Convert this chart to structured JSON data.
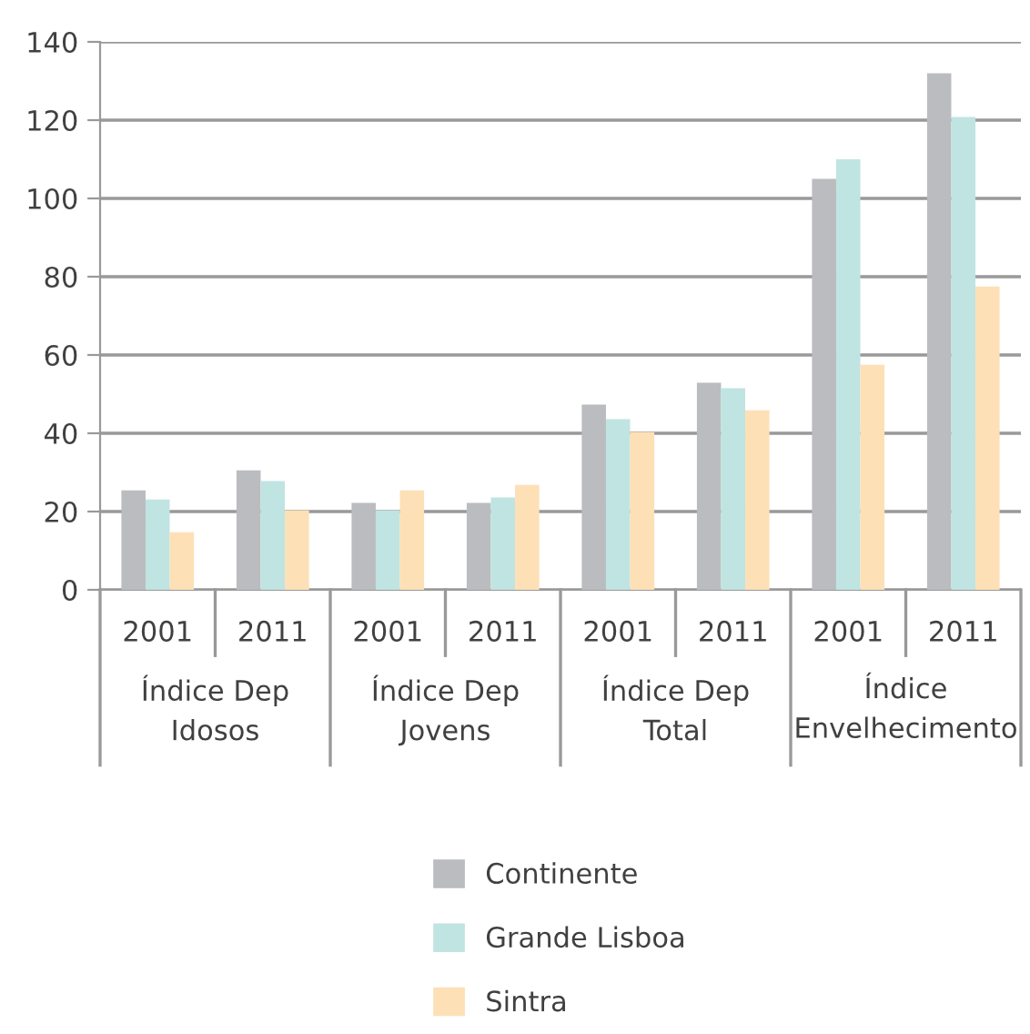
{
  "chart_data": {
    "type": "bar",
    "categories": [
      "2001",
      "2011",
      "2001",
      "2011",
      "2001",
      "2011",
      "2001",
      "2011"
    ],
    "series": [
      {
        "name": "Continente",
        "color": "#bbbcc0",
        "values": [
          25.4,
          30.5,
          22.2,
          22.2,
          47.3,
          52.9,
          105,
          132
        ]
      },
      {
        "name": "Grande Lisboa",
        "color": "#c0e4e1",
        "values": [
          23.1,
          27.8,
          20.3,
          23.6,
          43.6,
          51.5,
          110,
          120.8
        ]
      },
      {
        "name": "Sintra",
        "color": "#fde0b6",
        "values": [
          14.7,
          20.3,
          25.4,
          26.8,
          40.3,
          45.9,
          57.5,
          77.5
        ]
      }
    ],
    "annotations": [
      "Índice Dep\nIdosos",
      "Índice Dep\nJovens",
      "Índice Dep\nTotal",
      "Índice\nEnvelhecimento"
    ],
    "ylim": [
      0,
      140
    ],
    "yticks": [
      0,
      20,
      40,
      60,
      80,
      100,
      120,
      140
    ],
    "grid": "y",
    "legend": "bottom"
  }
}
